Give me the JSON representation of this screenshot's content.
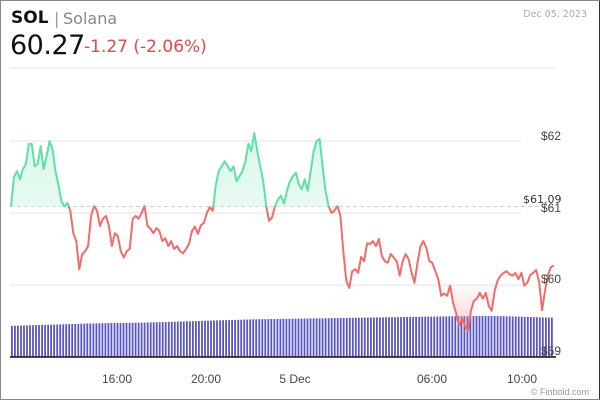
{
  "header": {
    "symbol": "SOL",
    "separator": "|",
    "name": "Solana",
    "price": "60.27",
    "change": "-1.27 (-2.06%)",
    "date": "Dec 05, 2023"
  },
  "colors": {
    "up_line": "#5ee0a6",
    "up_fill": "#d9f7e9",
    "down_line": "#f26b6b",
    "down_fill": "#fde2e2",
    "volume": "#5a55c5",
    "grid": "#e3e3e3",
    "reference": "#cfcfcf"
  },
  "footer": {
    "credit": "© Finbold.com"
  },
  "chart_data": {
    "type": "line",
    "title": "SOL | Solana",
    "subtitle": "60.27 -1.27 (-2.06%)",
    "xlabel": "",
    "ylabel": "",
    "ylim": [
      59,
      62.2
    ],
    "grid": true,
    "legend": null,
    "reference_line": {
      "value": 61.09,
      "label": "$61.09",
      "style": "dashed"
    },
    "y_ticks": [
      "$62",
      "$61",
      "$60",
      "$59"
    ],
    "x_ticks": [
      "16:00",
      "20:00",
      "5 Dec",
      "06:00",
      "10:00"
    ],
    "series": [
      {
        "name": "SOL price (USD)",
        "x_hint": "Dec 4 ~12:00 to Dec 5 ~11:00",
        "values": [
          61.09,
          61.5,
          61.58,
          61.47,
          61.61,
          61.68,
          61.96,
          61.96,
          61.65,
          61.68,
          61.93,
          61.61,
          61.79,
          62.0,
          61.89,
          61.58,
          61.38,
          61.17,
          61.09,
          61.14,
          61.03,
          60.72,
          60.61,
          60.22,
          60.43,
          60.47,
          60.54,
          60.96,
          61.1,
          61.03,
          60.82,
          60.92,
          60.96,
          60.82,
          60.54,
          60.72,
          60.68,
          60.47,
          60.38,
          60.47,
          60.5,
          60.92,
          60.96,
          60.92,
          61.0,
          61.1,
          60.82,
          60.78,
          60.72,
          60.79,
          60.75,
          60.61,
          60.65,
          60.54,
          60.61,
          60.5,
          60.54,
          60.47,
          60.44,
          60.5,
          60.57,
          60.75,
          60.81,
          60.71,
          60.83,
          60.86,
          61.0,
          61.08,
          61.03,
          61.38,
          61.58,
          61.65,
          61.72,
          61.65,
          61.58,
          61.65,
          61.44,
          61.51,
          61.58,
          61.72,
          61.96,
          61.86,
          62.11,
          61.86,
          61.65,
          61.44,
          61.1,
          60.89,
          60.94,
          61.1,
          61.19,
          61.24,
          61.13,
          61.31,
          61.44,
          61.51,
          61.56,
          61.4,
          61.33,
          61.47,
          61.31,
          61.58,
          61.86,
          62.0,
          62.03,
          61.65,
          61.31,
          61.1,
          61.0,
          61.03,
          61.1,
          60.96,
          60.47,
          60.06,
          59.96,
          60.19,
          60.22,
          60.17,
          60.39,
          60.33,
          60.58,
          60.57,
          60.61,
          60.54,
          60.64,
          60.4,
          60.33,
          60.31,
          60.43,
          60.38,
          60.33,
          60.13,
          60.33,
          60.43,
          60.36,
          60.17,
          60.03,
          60.31,
          60.54,
          60.61,
          60.51,
          60.33,
          60.31,
          60.19,
          60.08,
          59.85,
          59.88,
          59.85,
          59.99,
          59.75,
          59.61,
          59.43,
          59.53,
          59.43,
          59.36,
          59.64,
          59.78,
          59.81,
          59.89,
          59.81,
          59.89,
          59.71,
          59.64,
          59.92,
          60.06,
          60.13,
          60.17,
          60.19,
          60.15,
          60.13,
          60.17,
          60.08,
          60.17,
          59.99,
          60.03,
          60.14,
          60.17,
          60.21,
          60.03,
          59.65,
          59.93,
          60.14,
          60.25,
          60.27
        ]
      },
      {
        "name": "Volume",
        "type": "bar",
        "note": "relative volume bars along bottom, slowly rising left to right",
        "values": [
          0.76,
          0.78,
          0.8,
          0.82,
          0.83,
          0.84,
          0.86,
          0.88,
          0.9,
          0.92,
          0.93,
          0.94,
          0.95,
          0.96,
          0.97,
          0.98,
          0.99,
          1.0,
          1.0,
          0.98,
          0.96
        ]
      }
    ]
  }
}
